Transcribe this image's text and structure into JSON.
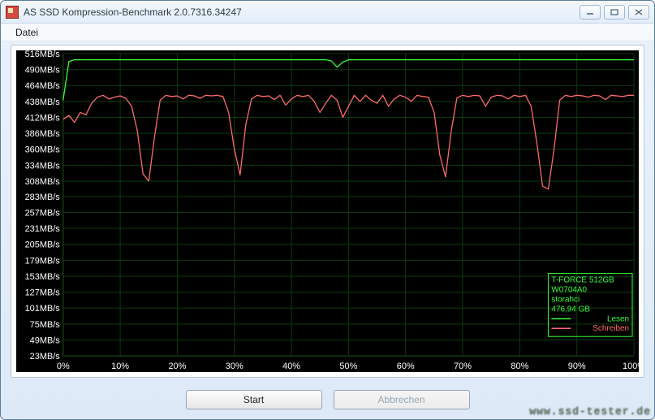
{
  "window": {
    "title": "AS SSD Kompression-Benchmark 2.0.7316.34247"
  },
  "menu": {
    "file": "Datei"
  },
  "buttons": {
    "start": "Start",
    "cancel": "Abbrechen"
  },
  "watermark": "www.ssd-tester.de",
  "chart": {
    "background_color": "#000000",
    "grid_color": "#0e3a0e",
    "axis_color": "#0e3a0e",
    "yaxis_label_color": "#ffffff",
    "xaxis_label_color": "#ffffff",
    "yaxis_font_size": 11,
    "xaxis_font_size": 11,
    "y_unit": "MB/s",
    "y_ticks": [
      516,
      490,
      464,
      438,
      412,
      386,
      360,
      334,
      308,
      283,
      257,
      231,
      205,
      179,
      153,
      127,
      101,
      75,
      49,
      23
    ],
    "x_ticks_pct": [
      0,
      10,
      20,
      30,
      40,
      50,
      60,
      70,
      80,
      90,
      100
    ],
    "series": {
      "read": {
        "name": "Lesen",
        "color": "#34ff34",
        "line_width": 1.3,
        "points": [
          [
            0,
            440
          ],
          [
            1,
            503
          ],
          [
            2,
            506
          ],
          [
            3,
            506
          ],
          [
            4,
            506
          ],
          [
            5,
            506
          ],
          [
            6,
            506
          ],
          [
            7,
            506
          ],
          [
            8,
            506
          ],
          [
            9,
            506
          ],
          [
            10,
            506
          ],
          [
            12,
            506
          ],
          [
            14,
            506
          ],
          [
            16,
            506
          ],
          [
            18,
            506
          ],
          [
            20,
            506
          ],
          [
            22,
            506
          ],
          [
            24,
            506
          ],
          [
            26,
            506
          ],
          [
            28,
            506
          ],
          [
            30,
            506
          ],
          [
            32,
            506
          ],
          [
            34,
            506
          ],
          [
            36,
            506
          ],
          [
            38,
            506
          ],
          [
            40,
            506
          ],
          [
            42,
            506
          ],
          [
            44,
            506
          ],
          [
            46,
            506
          ],
          [
            47,
            504
          ],
          [
            48,
            494
          ],
          [
            49,
            502
          ],
          [
            50,
            506
          ],
          [
            52,
            506
          ],
          [
            54,
            506
          ],
          [
            56,
            506
          ],
          [
            58,
            506
          ],
          [
            60,
            506
          ],
          [
            62,
            506
          ],
          [
            64,
            506
          ],
          [
            66,
            506
          ],
          [
            68,
            506
          ],
          [
            70,
            506
          ],
          [
            72,
            506
          ],
          [
            74,
            506
          ],
          [
            76,
            506
          ],
          [
            78,
            506
          ],
          [
            80,
            506
          ],
          [
            82,
            506
          ],
          [
            84,
            506
          ],
          [
            86,
            506
          ],
          [
            88,
            506
          ],
          [
            90,
            506
          ],
          [
            92,
            506
          ],
          [
            94,
            506
          ],
          [
            96,
            506
          ],
          [
            98,
            506
          ],
          [
            100,
            506
          ]
        ]
      },
      "write": {
        "name": "Schreiben",
        "color": "#ff6a6a",
        "line_width": 1.3,
        "points": [
          [
            0,
            409
          ],
          [
            1,
            415
          ],
          [
            2,
            404
          ],
          [
            3,
            420
          ],
          [
            4,
            416
          ],
          [
            5,
            435
          ],
          [
            6,
            445
          ],
          [
            7,
            448
          ],
          [
            8,
            442
          ],
          [
            9,
            445
          ],
          [
            10,
            447
          ],
          [
            11,
            443
          ],
          [
            12,
            430
          ],
          [
            13,
            390
          ],
          [
            14,
            320
          ],
          [
            15,
            308
          ],
          [
            16,
            380
          ],
          [
            17,
            440
          ],
          [
            18,
            448
          ],
          [
            19,
            446
          ],
          [
            20,
            447
          ],
          [
            21,
            442
          ],
          [
            22,
            448
          ],
          [
            23,
            447
          ],
          [
            24,
            443
          ],
          [
            25,
            448
          ],
          [
            26,
            447
          ],
          [
            27,
            448
          ],
          [
            28,
            446
          ],
          [
            29,
            420
          ],
          [
            30,
            360
          ],
          [
            31,
            318
          ],
          [
            32,
            400
          ],
          [
            33,
            442
          ],
          [
            34,
            448
          ],
          [
            35,
            446
          ],
          [
            36,
            447
          ],
          [
            37,
            441
          ],
          [
            38,
            448
          ],
          [
            39,
            432
          ],
          [
            40,
            442
          ],
          [
            41,
            448
          ],
          [
            42,
            446
          ],
          [
            43,
            448
          ],
          [
            44,
            438
          ],
          [
            45,
            420
          ],
          [
            46,
            435
          ],
          [
            47,
            448
          ],
          [
            48,
            440
          ],
          [
            49,
            412
          ],
          [
            50,
            430
          ],
          [
            51,
            448
          ],
          [
            52,
            438
          ],
          [
            53,
            448
          ],
          [
            54,
            440
          ],
          [
            55,
            435
          ],
          [
            56,
            448
          ],
          [
            57,
            430
          ],
          [
            58,
            442
          ],
          [
            59,
            448
          ],
          [
            60,
            445
          ],
          [
            61,
            438
          ],
          [
            62,
            448
          ],
          [
            63,
            446
          ],
          [
            64,
            445
          ],
          [
            65,
            420
          ],
          [
            66,
            350
          ],
          [
            67,
            315
          ],
          [
            68,
            390
          ],
          [
            69,
            444
          ],
          [
            70,
            448
          ],
          [
            71,
            446
          ],
          [
            72,
            448
          ],
          [
            73,
            447
          ],
          [
            74,
            430
          ],
          [
            75,
            445
          ],
          [
            76,
            448
          ],
          [
            77,
            447
          ],
          [
            78,
            442
          ],
          [
            79,
            448
          ],
          [
            80,
            446
          ],
          [
            81,
            448
          ],
          [
            82,
            430
          ],
          [
            83,
            370
          ],
          [
            84,
            300
          ],
          [
            85,
            295
          ],
          [
            86,
            360
          ],
          [
            87,
            440
          ],
          [
            88,
            448
          ],
          [
            89,
            446
          ],
          [
            90,
            448
          ],
          [
            91,
            447
          ],
          [
            92,
            445
          ],
          [
            93,
            448
          ],
          [
            94,
            447
          ],
          [
            95,
            441
          ],
          [
            96,
            448
          ],
          [
            97,
            447
          ],
          [
            98,
            446
          ],
          [
            99,
            448
          ],
          [
            100,
            448
          ]
        ]
      }
    },
    "legend": {
      "box_border_color": "#34ff34",
      "text_color": "#34ff34",
      "font_size": 10,
      "lines": [
        "T-FORCE 512GB",
        "W0704A0",
        "storahci",
        "476,94 GB"
      ],
      "items": [
        {
          "label": "Lesen",
          "color": "#34ff34"
        },
        {
          "label": "Schreiben",
          "color": "#ff6a6a"
        }
      ]
    }
  }
}
